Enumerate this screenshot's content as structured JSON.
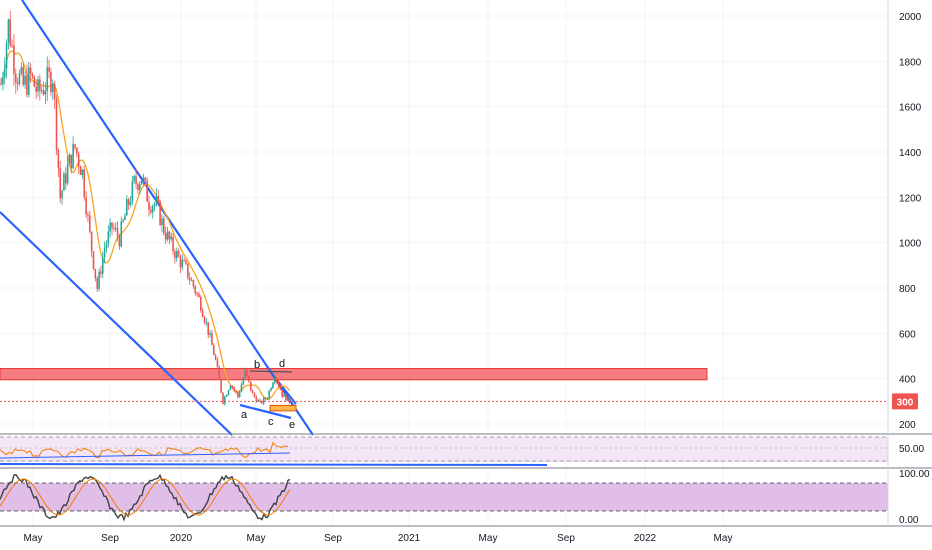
{
  "chart_data": {
    "type": "candlestick",
    "price_axis": {
      "ticks": [
        200,
        400,
        600,
        800,
        1000,
        1200,
        1400,
        1600,
        1800,
        2000
      ],
      "ylim": [
        150,
        2060
      ],
      "last_price_label": "300",
      "last_price": 300
    },
    "time_axis": {
      "labels": [
        "May",
        "Sep",
        "2020",
        "May",
        "Sep",
        "2021",
        "May",
        "Sep",
        "2022",
        "May"
      ]
    },
    "price_series": [
      {
        "t": 0,
        "v": 1700
      },
      {
        "t": 1,
        "v": 1960
      },
      {
        "t": 2,
        "v": 1760
      },
      {
        "t": 3,
        "v": 1690
      },
      {
        "t": 4,
        "v": 1730
      },
      {
        "t": 5,
        "v": 1660
      },
      {
        "t": 6,
        "v": 1700
      },
      {
        "t": 7,
        "v": 1740
      },
      {
        "t": 8,
        "v": 1200
      },
      {
        "t": 9,
        "v": 1330
      },
      {
        "t": 10,
        "v": 1420
      },
      {
        "t": 11,
        "v": 1310
      },
      {
        "t": 12,
        "v": 1030
      },
      {
        "t": 13,
        "v": 800
      },
      {
        "t": 14,
        "v": 980
      },
      {
        "t": 15,
        "v": 1070
      },
      {
        "t": 16,
        "v": 1020
      },
      {
        "t": 17,
        "v": 1150
      },
      {
        "t": 18,
        "v": 1260
      },
      {
        "t": 19,
        "v": 1290
      },
      {
        "t": 20,
        "v": 1180
      },
      {
        "t": 21,
        "v": 1170
      },
      {
        "t": 22,
        "v": 1060
      },
      {
        "t": 23,
        "v": 990
      },
      {
        "t": 24,
        "v": 930
      },
      {
        "t": 25,
        "v": 880
      },
      {
        "t": 26,
        "v": 810
      },
      {
        "t": 27,
        "v": 730
      },
      {
        "t": 28,
        "v": 610
      },
      {
        "t": 29,
        "v": 480
      },
      {
        "t": 30,
        "v": 300
      },
      {
        "t": 31,
        "v": 380
      },
      {
        "t": 32,
        "v": 320
      },
      {
        "t": 33,
        "v": 430
      },
      {
        "t": 34,
        "v": 330
      },
      {
        "t": 35,
        "v": 290
      },
      {
        "t": 36,
        "v": 320
      },
      {
        "t": 37,
        "v": 420
      },
      {
        "t": 38,
        "v": 330
      },
      {
        "t": 39,
        "v": 300
      }
    ],
    "moving_average_color": "#f5a623",
    "up_color": "#26a69a",
    "down_color": "#ef5350",
    "resistance_zone": {
      "low": 395,
      "high": 445,
      "color": "#f77c80"
    },
    "support_zone": {
      "low": 258,
      "high": 282,
      "color": "#ffb74d"
    },
    "trendline_color": "#2962ff",
    "pattern_labels": [
      "a",
      "b",
      "c",
      "d",
      "e"
    ],
    "rsi_panel": {
      "tick_label": "50.00",
      "color": "#f57c00"
    },
    "stoch_panel": {
      "tick_labels": [
        "100.00",
        "0.00"
      ],
      "color": "#424242",
      "band_color": "#e1bee7"
    }
  }
}
